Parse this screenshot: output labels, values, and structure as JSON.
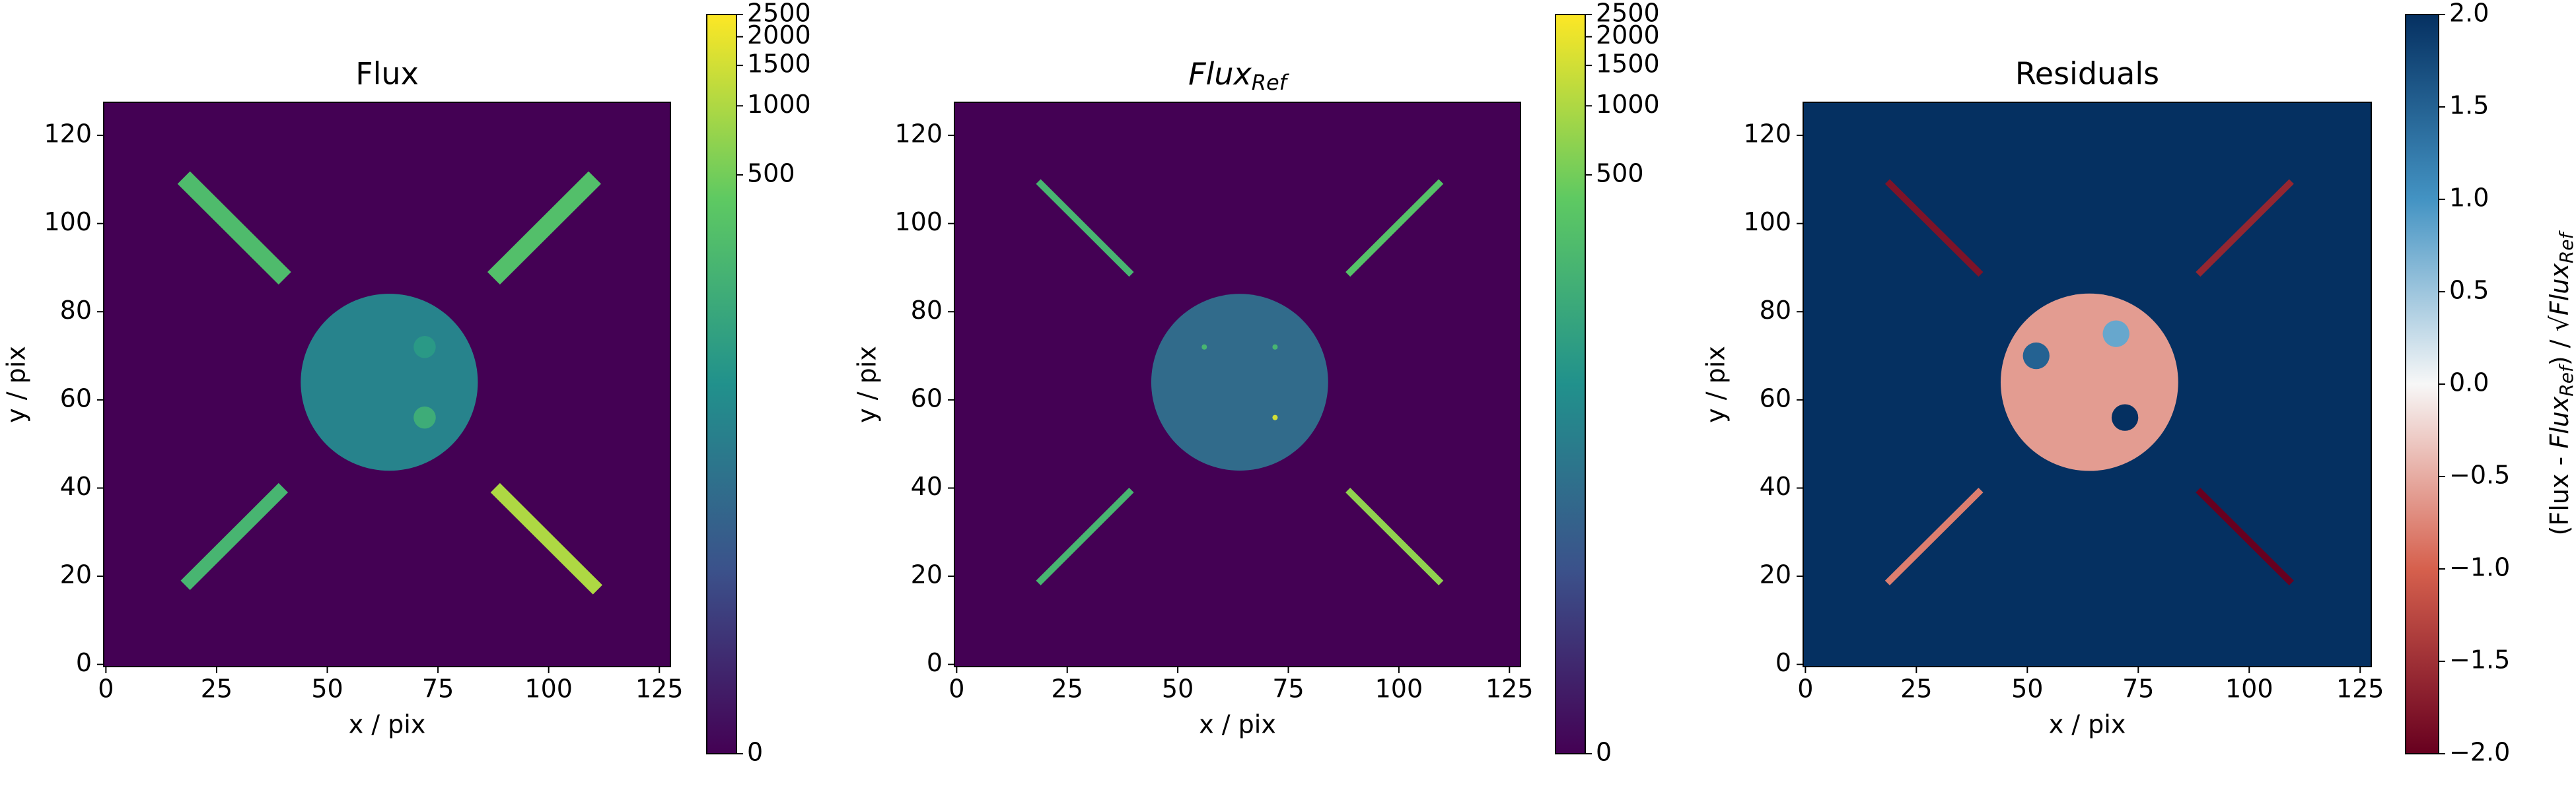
{
  "chart_data": [
    {
      "type": "heatmap",
      "title": "Flux",
      "xlabel": "x / pix",
      "ylabel": "y / pix",
      "xlim": [
        -0.5,
        127.5
      ],
      "ylim": [
        -0.5,
        127.5
      ],
      "xticks": [
        0,
        25,
        50,
        75,
        100,
        125
      ],
      "yticks": [
        0,
        20,
        40,
        60,
        80,
        100,
        120
      ],
      "colormap": "viridis",
      "color_scale": "asinh",
      "linear_width": 3,
      "clim": [
        0,
        2500
      ],
      "cticks": [
        0,
        500,
        1000,
        1500,
        2000,
        2500
      ],
      "background": 0,
      "features": [
        {
          "shape": "line",
          "x": [
            19,
            39
          ],
          "y": [
            109,
            89
          ],
          "width": 4,
          "value": 250
        },
        {
          "shape": "line",
          "x": [
            89,
            109
          ],
          "y": [
            89,
            109
          ],
          "width": 4,
          "value": 280
        },
        {
          "shape": "line",
          "x": [
            19,
            39
          ],
          "y": [
            19,
            39
          ],
          "width": 3,
          "value": 200
        },
        {
          "shape": "line",
          "x": [
            89,
            110
          ],
          "y": [
            39,
            18
          ],
          "width": 3,
          "value": 1000
        },
        {
          "shape": "disk",
          "x": [
            64
          ],
          "y": [
            64
          ],
          "r": 20,
          "value": 40
        },
        {
          "shape": "disk",
          "x": [
            72
          ],
          "y": [
            56
          ],
          "r": 2.5,
          "value": 150
        },
        {
          "shape": "disk",
          "x": [
            72
          ],
          "y": [
            72
          ],
          "r": 2.5,
          "value": 80
        }
      ]
    },
    {
      "type": "heatmap",
      "title": {
        "base": "Flux",
        "sub": "Ref"
      },
      "xlabel": "x / pix",
      "ylabel": "y / pix",
      "xlim": [
        -0.5,
        127.5
      ],
      "ylim": [
        -0.5,
        127.5
      ],
      "xticks": [
        0,
        25,
        50,
        75,
        100,
        125
      ],
      "yticks": [
        0,
        20,
        40,
        60,
        80,
        100,
        120
      ],
      "colormap": "viridis",
      "color_scale": "asinh",
      "linear_width": 3,
      "clim": [
        0,
        2500
      ],
      "cticks": [
        0,
        500,
        1000,
        1500,
        2000,
        2500
      ],
      "background": 0,
      "features": [
        {
          "shape": "line",
          "x": [
            19,
            39
          ],
          "y": [
            109,
            89
          ],
          "width": 1.5,
          "value": 200
        },
        {
          "shape": "line",
          "x": [
            89,
            109
          ],
          "y": [
            89,
            109
          ],
          "width": 1.5,
          "value": 300
        },
        {
          "shape": "line",
          "x": [
            19,
            39
          ],
          "y": [
            19,
            39
          ],
          "width": 1.5,
          "value": 200
        },
        {
          "shape": "line",
          "x": [
            89,
            109
          ],
          "y": [
            39,
            19
          ],
          "width": 1.5,
          "value": 700
        },
        {
          "shape": "disk",
          "x": [
            64
          ],
          "y": [
            64
          ],
          "r": 20,
          "value": 20
        },
        {
          "shape": "disk",
          "x": [
            72
          ],
          "y": [
            56
          ],
          "r": 0.6,
          "value": 1500
        },
        {
          "shape": "disk",
          "x": [
            72
          ],
          "y": [
            72
          ],
          "r": 0.6,
          "value": 200
        },
        {
          "shape": "disk",
          "x": [
            56
          ],
          "y": [
            72
          ],
          "r": 0.6,
          "value": 200
        }
      ]
    },
    {
      "type": "heatmap",
      "title": "Residuals",
      "xlabel": "x / pix",
      "ylabel": "y / pix",
      "clabel": [
        {
          "text": "(Flux - "
        },
        {
          "text": "Flux",
          "italic": true
        },
        {
          "text": "Ref",
          "italic": true,
          "sub": true
        },
        {
          "text": ") / √"
        },
        {
          "text": "Flux",
          "italic": true
        },
        {
          "text": "Ref",
          "italic": true,
          "sub": true
        }
      ],
      "xlim": [
        -0.5,
        127.5
      ],
      "ylim": [
        -0.5,
        127.5
      ],
      "xticks": [
        0,
        25,
        50,
        75,
        100,
        125
      ],
      "yticks": [
        0,
        20,
        40,
        60,
        80,
        100,
        120
      ],
      "colormap": "RdBu",
      "color_scale": "linear",
      "clim": [
        -2,
        2
      ],
      "cticks": [
        {
          "value": -2,
          "label": "−2.0"
        },
        {
          "value": -1.5,
          "label": "−1.5"
        },
        {
          "value": -1,
          "label": "−1.0"
        },
        {
          "value": -0.5,
          "label": "−0.5"
        },
        {
          "value": 0,
          "label": "0.0"
        },
        {
          "value": 0.5,
          "label": "0.5"
        },
        {
          "value": 1,
          "label": "1.0"
        },
        {
          "value": 1.5,
          "label": "1.5"
        },
        {
          "value": 2,
          "label": "2.0"
        }
      ],
      "background": 2,
      "features": [
        {
          "shape": "line",
          "x": [
            19,
            39
          ],
          "y": [
            109,
            89
          ],
          "width": 1.5,
          "value": -1.8
        },
        {
          "shape": "line",
          "x": [
            89,
            109
          ],
          "y": [
            89,
            109
          ],
          "width": 1.5,
          "value": -1.6
        },
        {
          "shape": "line",
          "x": [
            19,
            39
          ],
          "y": [
            19,
            39
          ],
          "width": 1.5,
          "value": -0.8
        },
        {
          "shape": "line",
          "x": [
            89,
            109
          ],
          "y": [
            39,
            19
          ],
          "width": 1.5,
          "value": -2
        },
        {
          "shape": "disk",
          "x": [
            64
          ],
          "y": [
            64
          ],
          "r": 20,
          "value": -0.6
        },
        {
          "shape": "disk",
          "x": [
            72
          ],
          "y": [
            56
          ],
          "r": 3,
          "value": 2
        },
        {
          "shape": "disk",
          "x": [
            52
          ],
          "y": [
            70
          ],
          "r": 3,
          "value": 1.5
        },
        {
          "shape": "disk",
          "x": [
            70
          ],
          "y": [
            75
          ],
          "r": 3,
          "value": 0.8
        }
      ]
    }
  ]
}
